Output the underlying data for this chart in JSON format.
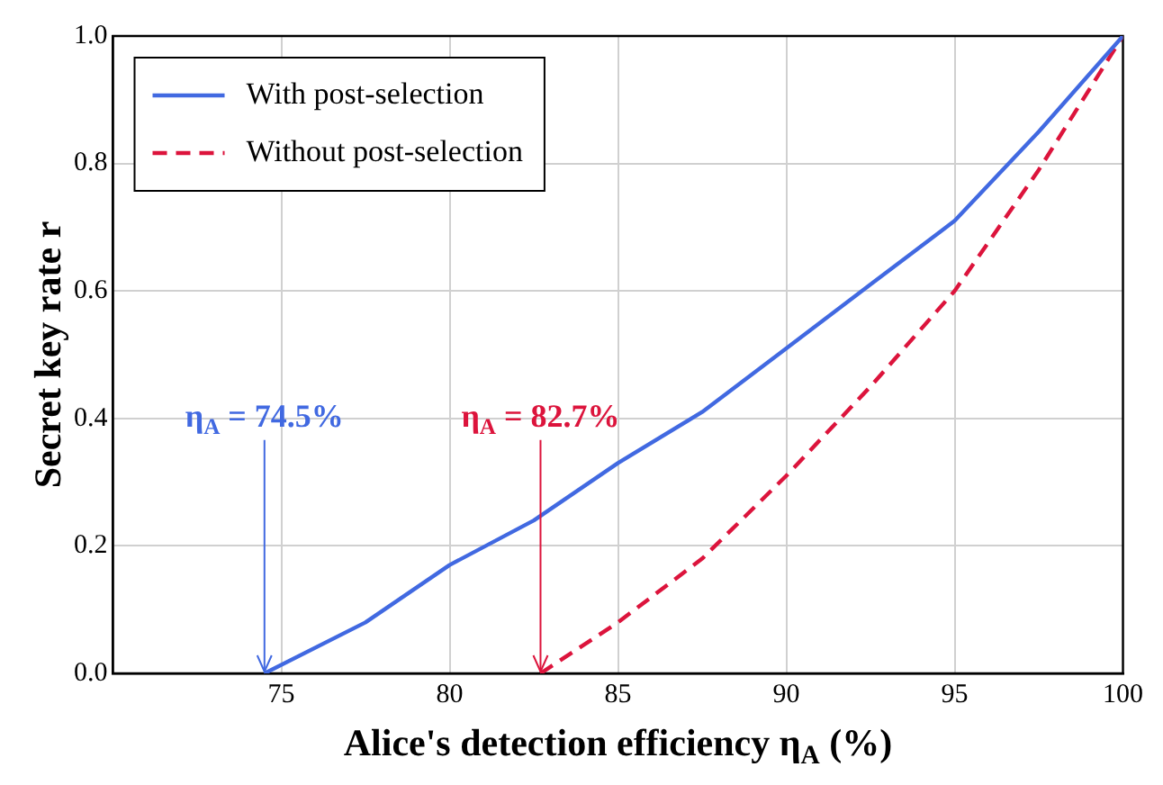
{
  "chart_data": {
    "type": "line",
    "xlabel": "Alice's detection efficiency η$_{A}$ (%)",
    "ylabel": "Secret key rate r",
    "xlim": [
      70,
      100
    ],
    "xticks": [
      75,
      80,
      85,
      90,
      95,
      100
    ],
    "ylim": [
      0,
      1
    ],
    "yticks": [
      {
        "value": 0,
        "label": "0.0"
      },
      {
        "value": 0.2,
        "label": "0.2"
      },
      {
        "value": 0.4,
        "label": "0.4"
      },
      {
        "value": 0.6,
        "label": "0.6"
      },
      {
        "value": 0.8,
        "label": "0.8"
      },
      {
        "value": 1,
        "label": "1.0"
      }
    ],
    "grid": true,
    "legend": "top left",
    "marker": "none",
    "series": [
      {
        "name": "With post-selection",
        "color": "#4169e1",
        "line_style": "solid",
        "x": [
          74.5,
          77.5,
          80,
          82.5,
          85,
          87.5,
          90,
          92.5,
          95,
          97.5,
          100
        ],
        "values": [
          0,
          0.08,
          0.17,
          0.24,
          0.33,
          0.41,
          0.51,
          0.61,
          0.71,
          0.85,
          1
        ]
      },
      {
        "name": "Without post-selection",
        "color": "#dc143c",
        "line_style": "dashed",
        "x": [
          82.7,
          85,
          87.5,
          90,
          92.5,
          95,
          97.5,
          100
        ],
        "values": [
          0,
          0.08,
          0.18,
          0.31,
          0.45,
          0.6,
          0.79,
          1
        ]
      }
    ],
    "annotations": [
      {
        "text": "η$_{A}$ = 74.5%",
        "x": 74.5,
        "y": 0
      },
      {
        "text": "η$_{A}$ = 82.7%",
        "x": 82.7,
        "y": 0
      }
    ]
  }
}
